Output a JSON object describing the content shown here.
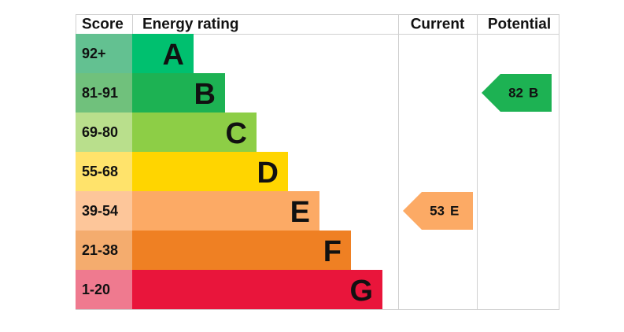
{
  "headers": {
    "score": "Score",
    "rating": "Energy rating",
    "current": "Current",
    "potential": "Potential"
  },
  "bands": [
    {
      "score": "92+",
      "letter": "A",
      "color": "#00c06f",
      "light": "#63c191"
    },
    {
      "score": "81-91",
      "letter": "B",
      "color": "#1db253",
      "light": "#70c17c"
    },
    {
      "score": "69-80",
      "letter": "C",
      "color": "#8dce46",
      "light": "#b9df8c"
    },
    {
      "score": "55-68",
      "letter": "D",
      "color": "#ffd500",
      "light": "#ffe36b"
    },
    {
      "score": "39-54",
      "letter": "E",
      "color": "#fcaa65",
      "light": "#fdc69a"
    },
    {
      "score": "21-38",
      "letter": "F",
      "color": "#ef8023",
      "light": "#f4ac6e"
    },
    {
      "score": "1-20",
      "letter": "G",
      "color": "#e9153b",
      "light": "#ef7a8f"
    }
  ],
  "current": {
    "value": 53,
    "letter": "E"
  },
  "potential": {
    "value": 82,
    "letter": "B"
  }
}
